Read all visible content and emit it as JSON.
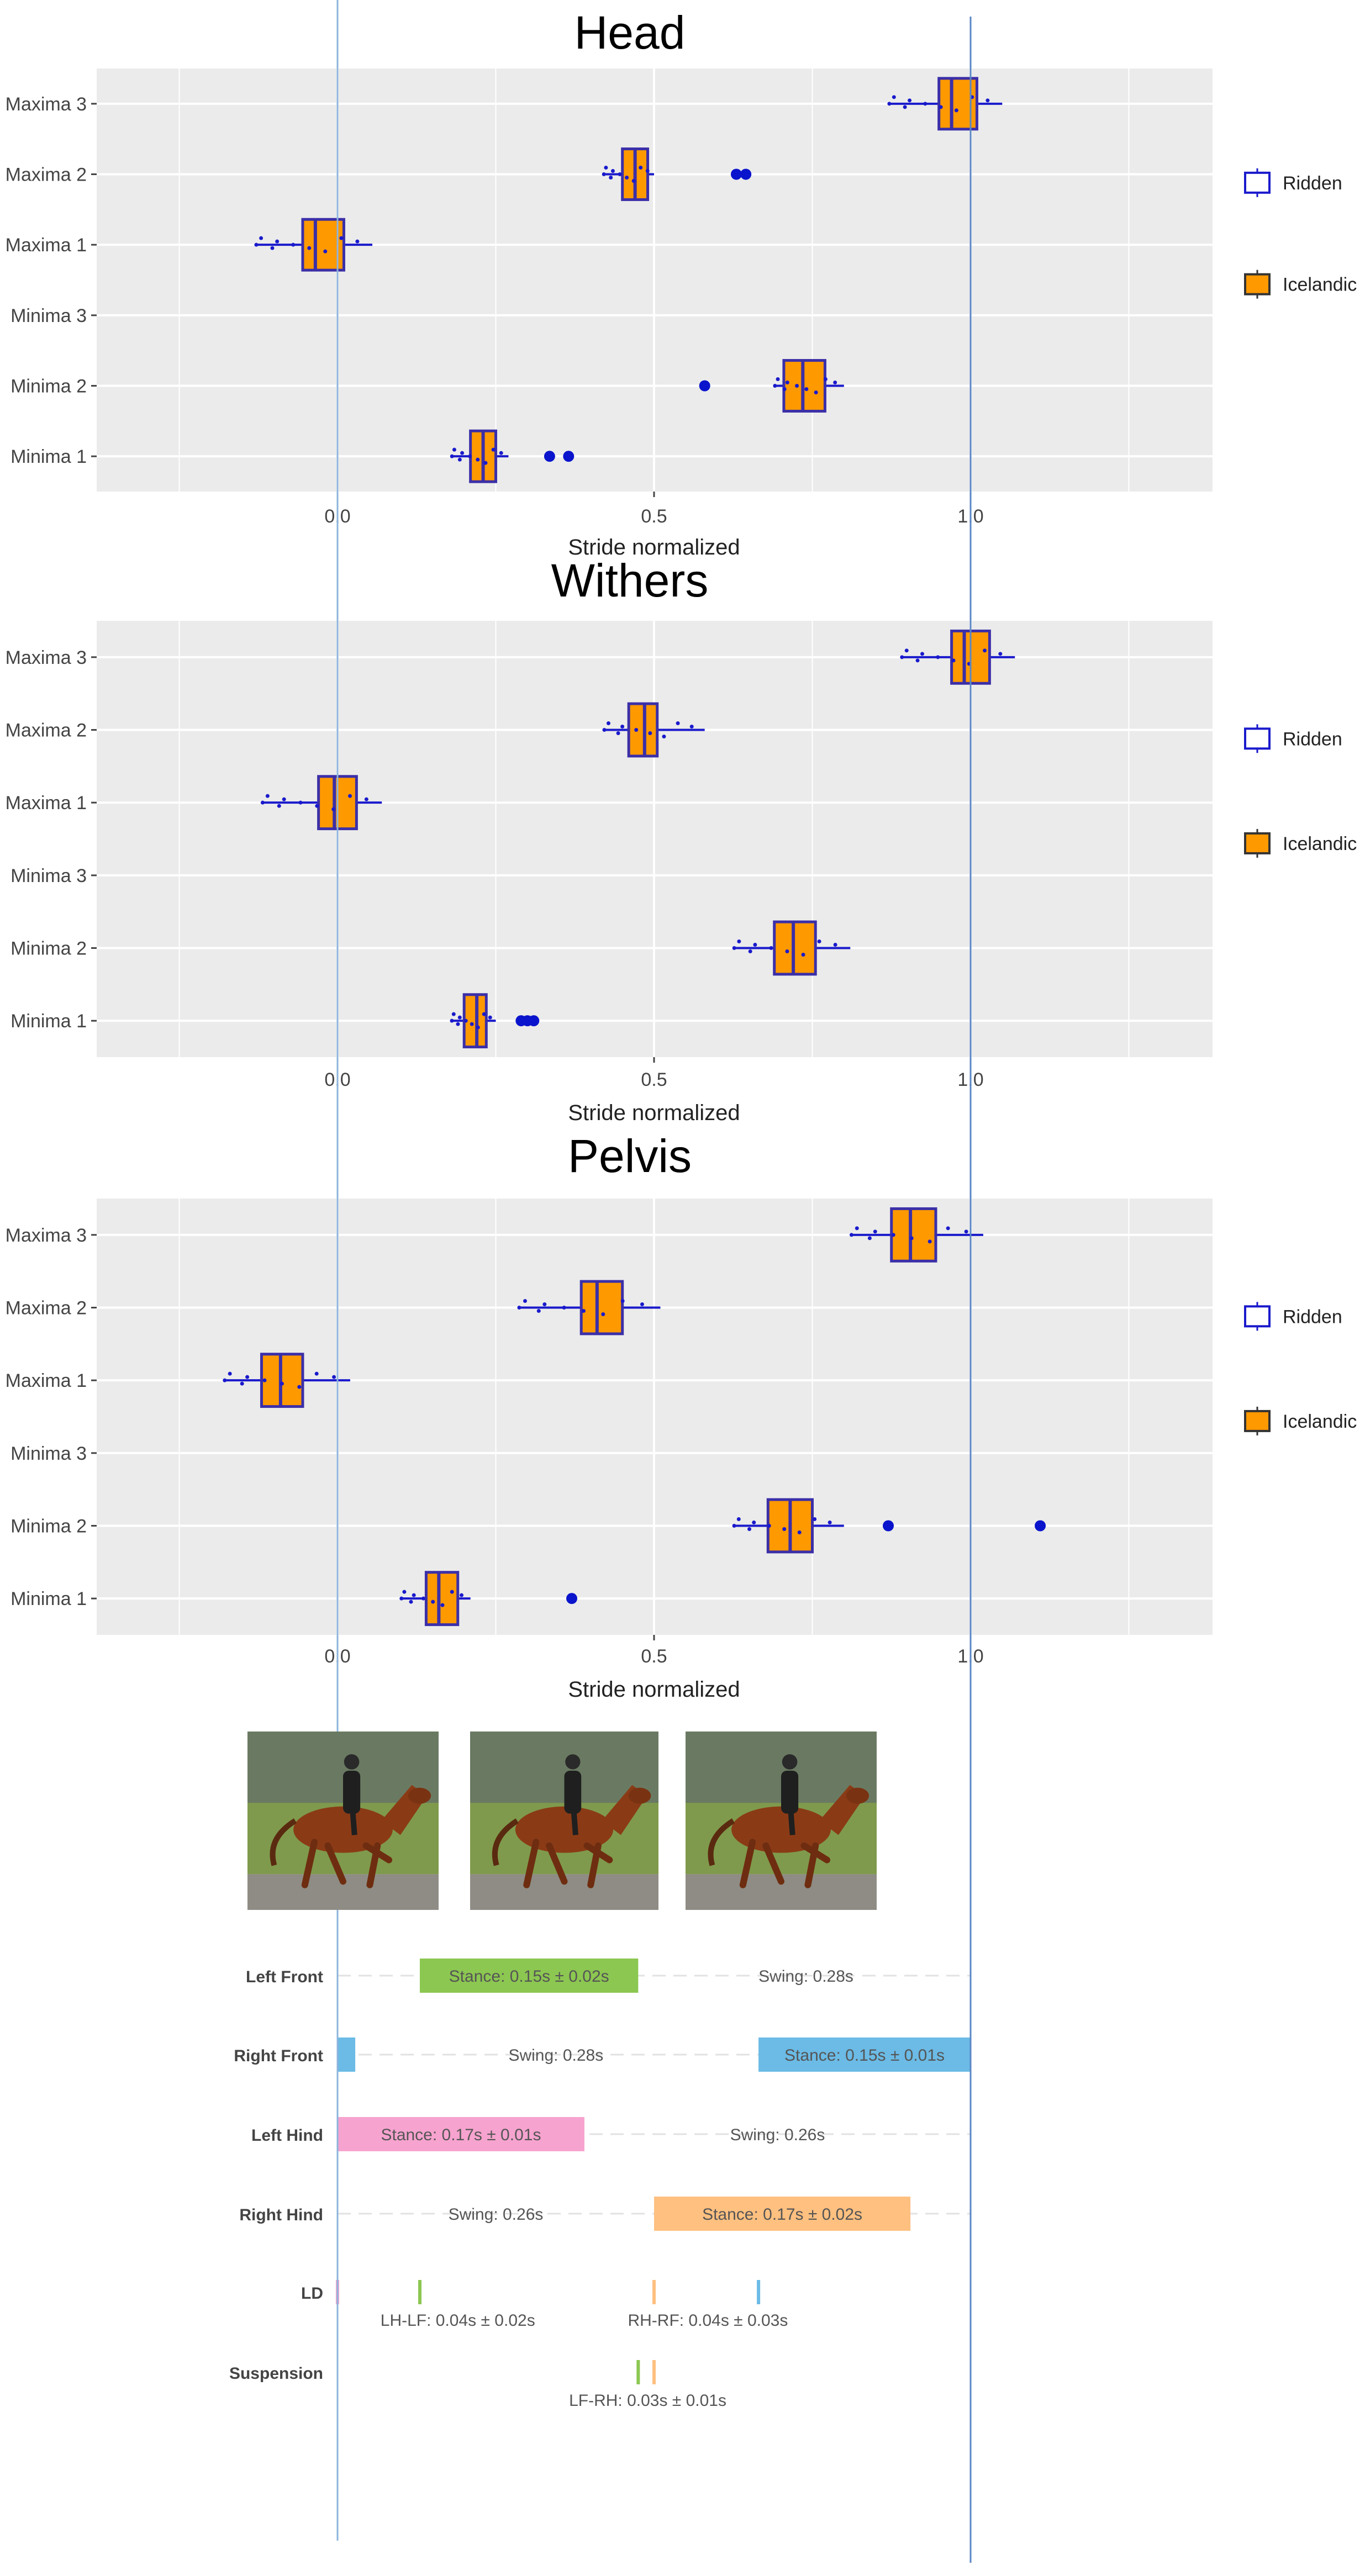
{
  "chart_data": [
    {
      "type": "boxplot",
      "title": "Head",
      "xlabel": "Stride normalized",
      "xlim": [
        -0.38,
        1.38
      ],
      "xticks": [
        0.0,
        0.5,
        1.0
      ],
      "xtick_labels": [
        "0.0",
        "0.5",
        "1.0"
      ],
      "categories": [
        "Maxima 3",
        "Maxima 2",
        "Maxima 1",
        "Minima 3",
        "Minima 2",
        "Minima 1"
      ],
      "boxes": [
        {
          "label": "Maxima 3",
          "whisker_low": 0.87,
          "q1": 0.95,
          "median": 0.97,
          "q3": 1.01,
          "whisker_high": 1.05,
          "outliers": []
        },
        {
          "label": "Maxima 2",
          "whisker_low": 0.42,
          "q1": 0.45,
          "median": 0.47,
          "q3": 0.49,
          "whisker_high": 0.5,
          "outliers": [
            0.63,
            0.645
          ]
        },
        {
          "label": "Maxima 1",
          "whisker_low": -0.13,
          "q1": -0.055,
          "median": -0.035,
          "q3": 0.01,
          "whisker_high": 0.055,
          "outliers": []
        },
        {
          "label": "Minima 3",
          "empty": true
        },
        {
          "label": "Minima 2",
          "whisker_low": 0.69,
          "q1": 0.705,
          "median": 0.735,
          "q3": 0.77,
          "whisker_high": 0.8,
          "outliers": [
            0.58
          ]
        },
        {
          "label": "Minima 1",
          "whisker_low": 0.18,
          "q1": 0.21,
          "median": 0.23,
          "q3": 0.25,
          "whisker_high": 0.27,
          "outliers": [
            0.335,
            0.365
          ]
        }
      ],
      "legend": {
        "position": "right",
        "entries": [
          {
            "label": "Ridden",
            "style": "outline"
          },
          {
            "label": "Icelandic",
            "style": "filled"
          }
        ]
      }
    },
    {
      "type": "boxplot",
      "title": "Withers",
      "xlabel": "Stride normalized",
      "xlim": [
        -0.38,
        1.38
      ],
      "xticks": [
        0.0,
        0.5,
        1.0
      ],
      "xtick_labels": [
        "0.0",
        "0.5",
        "1.0"
      ],
      "categories": [
        "Maxima 3",
        "Maxima 2",
        "Maxima 1",
        "Minima 3",
        "Minima 2",
        "Minima 1"
      ],
      "boxes": [
        {
          "label": "Maxima 3",
          "whisker_low": 0.89,
          "q1": 0.97,
          "median": 0.99,
          "q3": 1.03,
          "whisker_high": 1.07,
          "outliers": []
        },
        {
          "label": "Maxima 2",
          "whisker_low": 0.42,
          "q1": 0.46,
          "median": 0.485,
          "q3": 0.505,
          "whisker_high": 0.58,
          "outliers": []
        },
        {
          "label": "Maxima 1",
          "whisker_low": -0.12,
          "q1": -0.03,
          "median": -0.005,
          "q3": 0.03,
          "whisker_high": 0.07,
          "outliers": []
        },
        {
          "label": "Minima 3",
          "empty": true
        },
        {
          "label": "Minima 2",
          "whisker_low": 0.625,
          "q1": 0.69,
          "median": 0.72,
          "q3": 0.755,
          "whisker_high": 0.81,
          "outliers": []
        },
        {
          "label": "Minima 1",
          "whisker_low": 0.18,
          "q1": 0.2,
          "median": 0.22,
          "q3": 0.235,
          "whisker_high": 0.25,
          "outliers": [
            0.29,
            0.3,
            0.31
          ]
        }
      ],
      "legend": {
        "position": "right",
        "entries": [
          {
            "label": "Ridden",
            "style": "outline"
          },
          {
            "label": "Icelandic",
            "style": "filled"
          }
        ]
      }
    },
    {
      "type": "boxplot",
      "title": "Pelvis",
      "xlabel": "Stride normalized",
      "xlim": [
        -0.38,
        1.38
      ],
      "xticks": [
        0.0,
        0.5,
        1.0
      ],
      "xtick_labels": [
        "0.0",
        "0.5",
        "1.0"
      ],
      "categories": [
        "Maxima 3",
        "Maxima 2",
        "Maxima 1",
        "Minima 3",
        "Minima 2",
        "Minima 1"
      ],
      "boxes": [
        {
          "label": "Maxima 3",
          "whisker_low": 0.81,
          "q1": 0.875,
          "median": 0.905,
          "q3": 0.945,
          "whisker_high": 1.02,
          "outliers": []
        },
        {
          "label": "Maxima 2",
          "whisker_low": 0.285,
          "q1": 0.385,
          "median": 0.41,
          "q3": 0.45,
          "whisker_high": 0.51,
          "outliers": []
        },
        {
          "label": "Maxima 1",
          "whisker_low": -0.18,
          "q1": -0.12,
          "median": -0.09,
          "q3": -0.055,
          "whisker_high": 0.02,
          "outliers": []
        },
        {
          "label": "Minima 3",
          "empty": true
        },
        {
          "label": "Minima 2",
          "whisker_low": 0.625,
          "q1": 0.68,
          "median": 0.715,
          "q3": 0.75,
          "whisker_high": 0.8,
          "outliers": [
            0.87,
            1.11
          ]
        },
        {
          "label": "Minima 1",
          "whisker_low": 0.1,
          "q1": 0.14,
          "median": 0.16,
          "q3": 0.19,
          "whisker_high": 0.21,
          "outliers": [
            0.37
          ]
        }
      ],
      "legend": {
        "position": "right",
        "entries": [
          {
            "label": "Ridden",
            "style": "outline"
          },
          {
            "label": "Icelandic",
            "style": "filled"
          }
        ]
      }
    },
    {
      "type": "gantt",
      "title": "",
      "xlim": [
        0.0,
        1.0
      ],
      "rows": [
        {
          "label": "Left Front",
          "segments": [
            {
              "start": 0.13,
              "end": 0.475,
              "text": "Stance: 0.15s ± 0.02s",
              "color": "#8cc751"
            }
          ],
          "swing": {
            "text": "Swing: 0.28s",
            "center": 0.74
          }
        },
        {
          "label": "Right Front",
          "segments": [
            {
              "start": 0.0,
              "end": 0.028,
              "text": "",
              "color": "#6bbbe6"
            },
            {
              "start": 0.665,
              "end": 1.0,
              "text": "Stance: 0.15s ± 0.01s",
              "color": "#6bbbe6"
            }
          ],
          "swing": {
            "text": "Swing: 0.28s",
            "center": 0.345
          }
        },
        {
          "label": "Left Hind",
          "segments": [
            {
              "start": 0.0,
              "end": 0.39,
              "text": "Stance: 0.17s ± 0.01s",
              "color": "#f7a3cf"
            }
          ],
          "swing": {
            "text": "Swing: 0.26s",
            "center": 0.695
          }
        },
        {
          "label": "Right Hind",
          "segments": [
            {
              "start": 0.5,
              "end": 0.905,
              "text": "Stance: 0.17s ± 0.02s",
              "color": "#ffc080"
            }
          ],
          "swing": {
            "text": "Swing: 0.26s",
            "center": 0.25
          }
        },
        {
          "label": "LD",
          "markers": [
            {
              "x": 0.0,
              "color": "#f7a3cf"
            },
            {
              "x": 0.13,
              "color": "#8cc751"
            },
            {
              "x": 0.5,
              "color": "#ffc080"
            },
            {
              "x": 0.665,
              "color": "#6bbbe6"
            }
          ],
          "annotations": [
            {
              "text": "LH-LF: 0.04s ± 0.02s",
              "center": 0.19
            },
            {
              "text": "RH-RF: 0.04s ± 0.03s",
              "center": 0.585
            }
          ]
        },
        {
          "label": "Suspension",
          "markers": [
            {
              "x": 0.475,
              "color": "#8cc751"
            },
            {
              "x": 0.5,
              "color": "#ffc080"
            }
          ],
          "annotations": [
            {
              "text": "LF-RH: 0.03s ± 0.01s",
              "center": 0.49
            }
          ]
        }
      ]
    }
  ],
  "colors": {
    "panel_bg": "#ebebeb",
    "box_fill": "#ff9900",
    "box_stroke": "#3b2fa8",
    "whisker": "#1a1acc",
    "outlier": "#0a14cc",
    "ref_line": "#8cb4dc",
    "text": "#444444"
  },
  "photos": [
    {
      "name": "tolt-photo-1"
    },
    {
      "name": "tolt-photo-2"
    },
    {
      "name": "tolt-photo-3"
    }
  ]
}
